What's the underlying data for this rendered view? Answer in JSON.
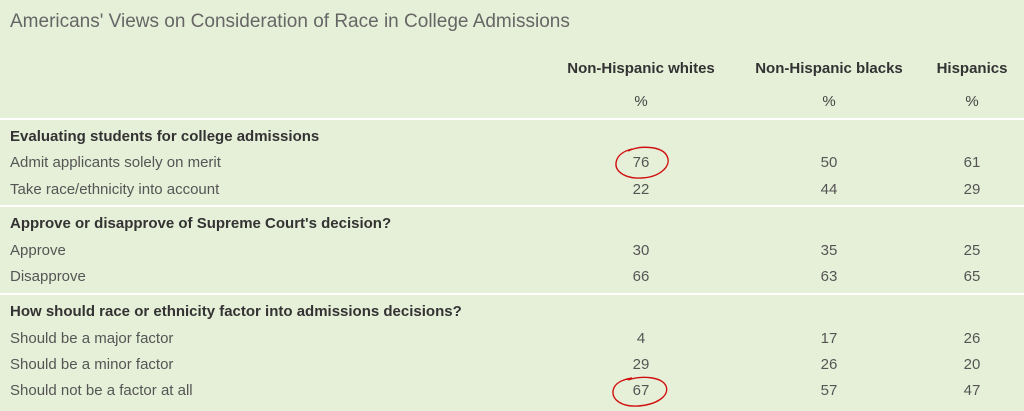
{
  "chart_data": {
    "type": "table",
    "title": "Americans' Views on Consideration of Race in College Admissions",
    "columns": [
      "Non-Hispanic whites",
      "Non-Hispanic blacks",
      "Hispanics"
    ],
    "unit": "%",
    "sections": [
      {
        "heading": "Evaluating students for college admissions",
        "rows": [
          {
            "label": "Admit applicants solely on merit",
            "values": [
              "76",
              "50",
              "61"
            ]
          },
          {
            "label": "Take race/ethnicity into account",
            "values": [
              "22",
              "44",
              "29"
            ]
          }
        ]
      },
      {
        "heading": "Approve or disapprove of Supreme Court's decision?",
        "rows": [
          {
            "label": "Approve",
            "values": [
              "30",
              "35",
              "25"
            ]
          },
          {
            "label": "Disapprove",
            "values": [
              "66",
              "63",
              "65"
            ]
          }
        ]
      },
      {
        "heading": "How should race or ethnicity factor into admissions decisions?",
        "rows": [
          {
            "label": "Should be a major factor",
            "values": [
              "4",
              "17",
              "26"
            ]
          },
          {
            "label": "Should be a minor factor",
            "values": [
              "29",
              "26",
              "20"
            ]
          },
          {
            "label": "Should not be a factor at all",
            "values": [
              "67",
              "57",
              "47"
            ]
          }
        ]
      }
    ]
  },
  "colors": {
    "background": "#e6f0d8",
    "annotation_circle": "#d01010"
  }
}
